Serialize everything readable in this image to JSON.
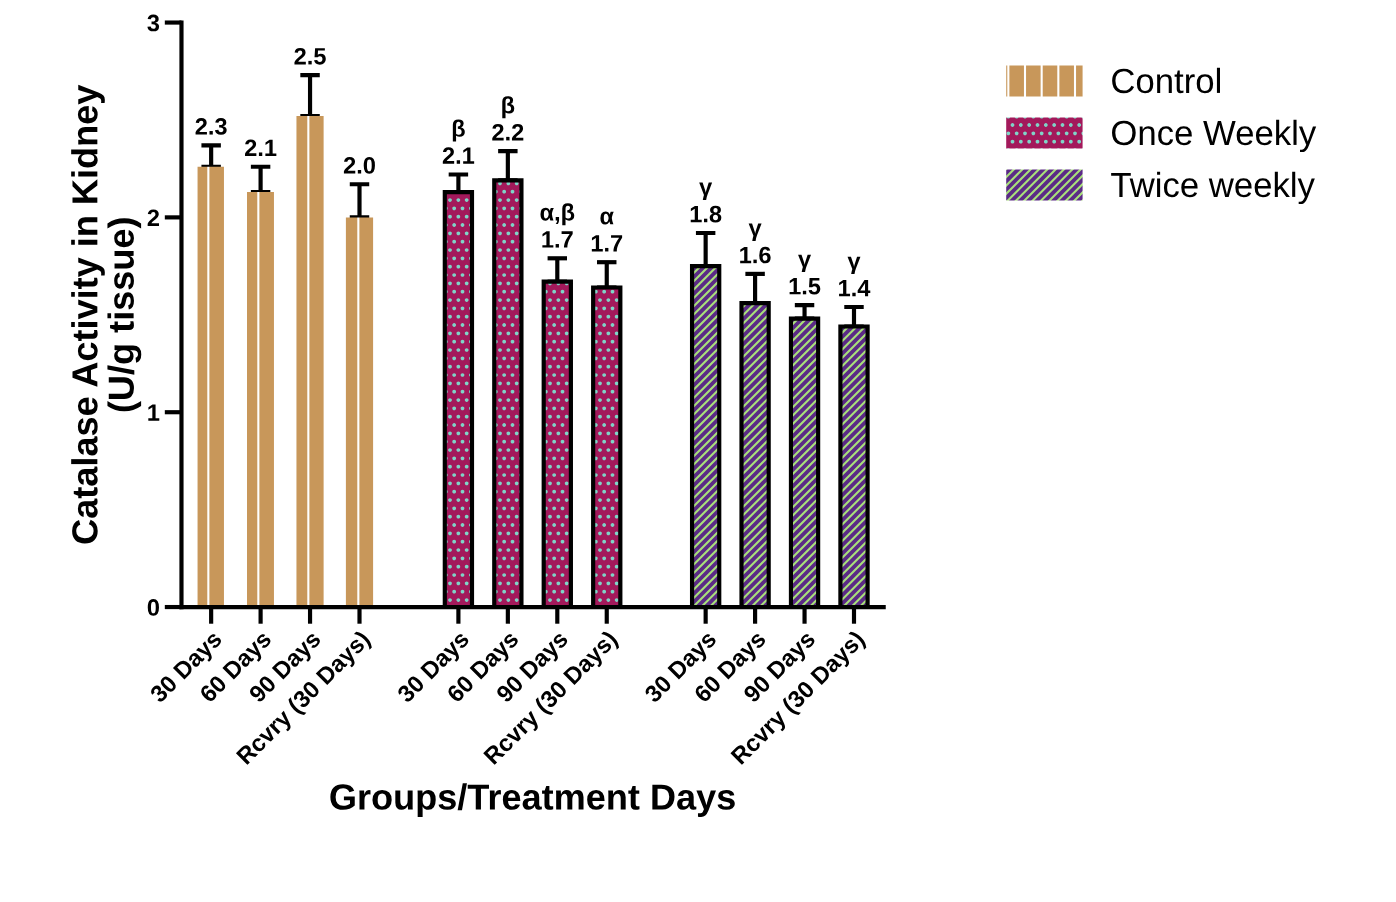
{
  "chart_data": {
    "type": "bar",
    "xlabel": "Groups/Treatment Days",
    "ylabel": "Catalase Activity in Kidney\n(U/g tissue)",
    "categories": [
      "30 Days",
      "60 Days",
      "90 Days",
      "Rcvry (30 Days)",
      null,
      "30 Days",
      "60 Days",
      "90 Days",
      "Rcvry (30 Days)",
      null,
      "30 Days",
      "60 Days",
      "90 Days",
      "Rcvry (30 Days)"
    ],
    "series": [
      {
        "name": "Control",
        "color": "#c8975a",
        "values": [
          2.26,
          2.13,
          2.52,
          2.0,
          null,
          null,
          null,
          null,
          null,
          null,
          null,
          null,
          null,
          null
        ],
        "errors": [
          0.11,
          0.13,
          0.21,
          0.17,
          null,
          null,
          null,
          null,
          null,
          null,
          null,
          null,
          null,
          null
        ],
        "value_labels": [
          "2.3",
          "2.1",
          "2.5",
          "2.0",
          null,
          null,
          null,
          null,
          null,
          null,
          null,
          null,
          null,
          null
        ]
      },
      {
        "name": "Once Weekly",
        "color": "#a3195b",
        "values": [
          null,
          null,
          null,
          null,
          null,
          2.13,
          2.19,
          1.67,
          1.64,
          null,
          null,
          null,
          null,
          null
        ],
        "errors": [
          null,
          null,
          null,
          null,
          null,
          0.09,
          0.15,
          0.12,
          0.13,
          null,
          null,
          null,
          null,
          null
        ],
        "value_labels": [
          null,
          null,
          null,
          null,
          null,
          "β\n2.1",
          "β\n2.2",
          "α,β\n1.7",
          "α\n1.7",
          null,
          null,
          null,
          null,
          null
        ]
      },
      {
        "name": "Twice weekly",
        "color": "#5b2a86",
        "values": [
          null,
          null,
          null,
          null,
          null,
          null,
          null,
          null,
          null,
          null,
          1.75,
          1.56,
          1.48,
          1.44
        ],
        "errors": [
          null,
          null,
          null,
          null,
          null,
          null,
          null,
          null,
          null,
          null,
          0.17,
          0.15,
          0.07,
          0.1
        ],
        "value_labels": [
          null,
          null,
          null,
          null,
          null,
          null,
          null,
          null,
          null,
          null,
          "γ\n1.8",
          "γ\n1.6",
          "γ\n1.5",
          "γ\n1.4"
        ]
      }
    ],
    "ylim": [
      0,
      3
    ],
    "yticks": [
      0,
      1,
      2,
      3
    ],
    "grid": false,
    "legend": "top right"
  }
}
